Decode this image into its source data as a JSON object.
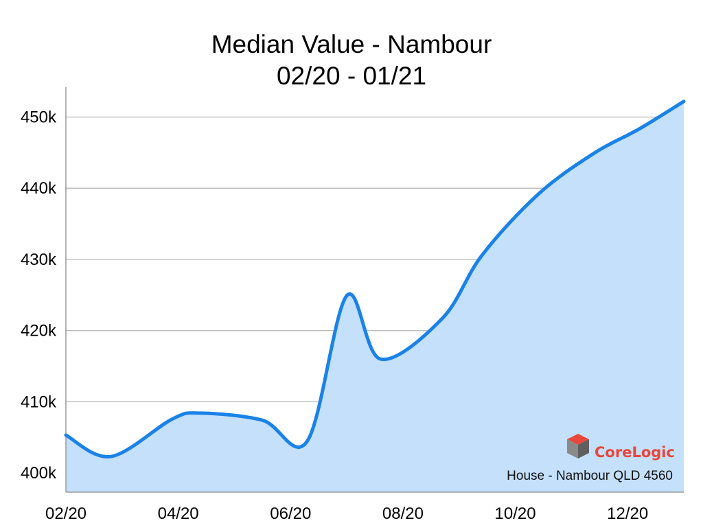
{
  "chart_data": {
    "type": "area",
    "title": "Median Value - Nambour",
    "subtitle": "02/20 - 01/21",
    "xlabel": "",
    "ylabel": "",
    "x_tick_labels": [
      "02/20",
      "04/20",
      "06/20",
      "08/20",
      "10/20",
      "12/20"
    ],
    "y_tick_labels": [
      "400k",
      "410k",
      "420k",
      "430k",
      "440k",
      "450k"
    ],
    "y_ticks": [
      400000,
      410000,
      420000,
      430000,
      440000,
      450000
    ],
    "ylim": [
      397300,
      454200
    ],
    "xlim": [
      0,
      11
    ],
    "grid": true,
    "annotation": "House - Nambour QLD 4560",
    "watermark": "CoreLogic",
    "colors": {
      "line": "#1a82e8",
      "fill": "#c4e0fb",
      "grid": "#bdbdbd",
      "logo": "#e8473c"
    },
    "series": [
      {
        "x": [
          0,
          0.8,
          1.9,
          2.4,
          3.5,
          4.3,
          5,
          5.6,
          6.7,
          7.4,
          8.4,
          9.4,
          10.2,
          11
        ],
        "y": [
          405300,
          402300,
          407600,
          408400,
          407400,
          404500,
          424900,
          416000,
          421700,
          430500,
          439100,
          444900,
          448300,
          452200
        ]
      }
    ]
  }
}
